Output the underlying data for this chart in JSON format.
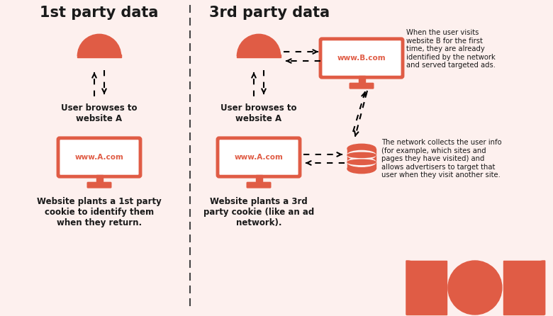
{
  "bg_color": "#fdf0ee",
  "coral": "#e05c45",
  "dark": "#1a1a1a",
  "title_1st": "1st party data",
  "title_3rd": "3rd party data",
  "label_browse_1st": "User browses to\nwebsite A",
  "label_cookie_1st": "Website plants a 1st party\ncookie to identify them\nwhen they return.",
  "label_browse_3rd": "User browses to\nwebsite A",
  "label_cookie_3rd": "Website plants a 3rd\nparty cookie (like an ad\nnetwork).",
  "label_website_b": "When the user visits\nwebsite B for the first\ntime, they are already\nidentified by the network\nand served targeted ads.",
  "label_network": "The network collects the user info\n(for example, which sites and\npages they have visited) and\nallows advertisers to target that\nuser when they visit another site.",
  "www_a": "www.A.com",
  "www_a2": "www.A.com",
  "www_b": "www.B.com"
}
